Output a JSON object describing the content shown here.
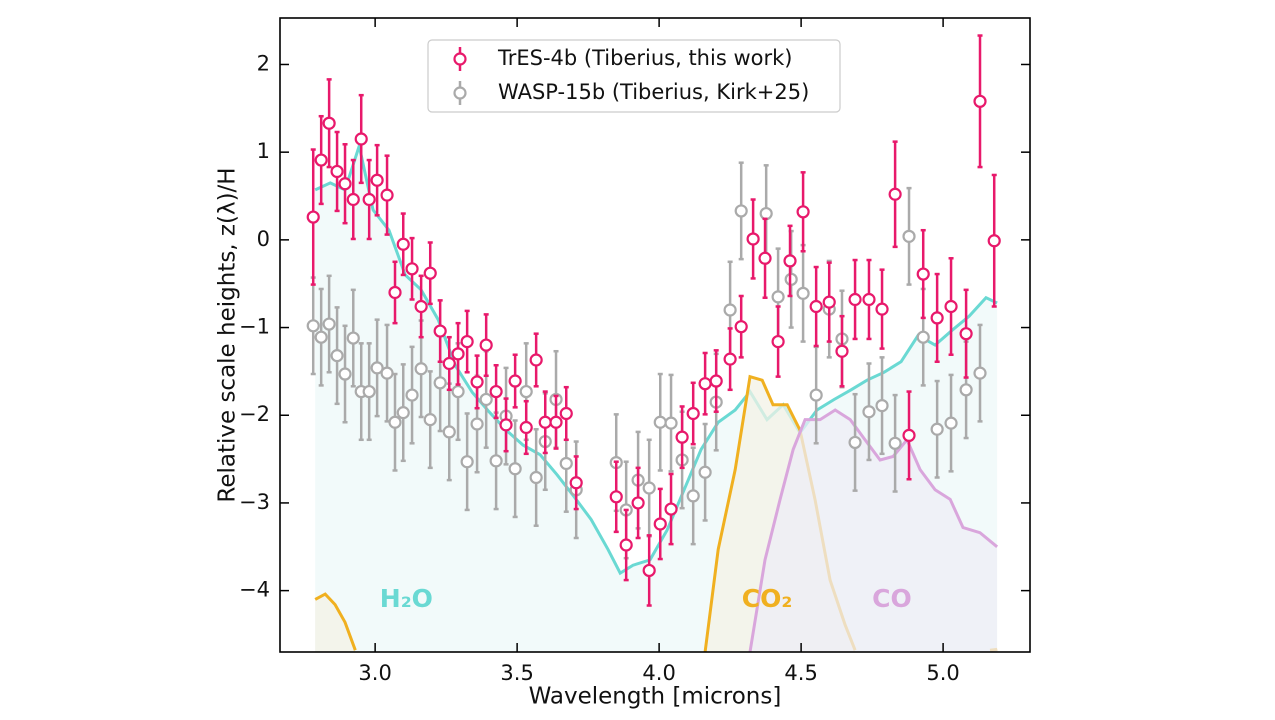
{
  "chart_data": {
    "type": "scatter",
    "xlabel": "Wavelength [microns]",
    "ylabel": "Relative scale heights, z(λ)/H",
    "xlim": [
      2.665,
      5.306
    ],
    "ylim": [
      -4.7,
      2.53
    ],
    "xticks": [
      {
        "value": 3.0,
        "label": "3.0"
      },
      {
        "value": 3.5,
        "label": "3.5"
      },
      {
        "value": 4.0,
        "label": "4.0"
      },
      {
        "value": 4.5,
        "label": "4.5"
      },
      {
        "value": 5.0,
        "label": "5.0"
      }
    ],
    "yticks": [
      {
        "value": -4,
        "label": "−4"
      },
      {
        "value": -3,
        "label": "−3"
      },
      {
        "value": -2,
        "label": "−2"
      },
      {
        "value": -1,
        "label": "−1"
      },
      0,
      1,
      2
    ],
    "legend": "upper center",
    "series": [
      {
        "name": "TrES-4b (Tiberius, this work)",
        "color": "#e8196b",
        "x": [
          2.782,
          2.81,
          2.838,
          2.866,
          2.894,
          2.923,
          2.951,
          2.979,
          3.007,
          3.042,
          3.07,
          3.099,
          3.13,
          3.162,
          3.194,
          3.229,
          3.261,
          3.292,
          3.324,
          3.359,
          3.391,
          3.426,
          3.461,
          3.493,
          3.532,
          3.567,
          3.599,
          3.637,
          3.673,
          3.708,
          3.849,
          3.884,
          3.926,
          3.965,
          4.004,
          4.042,
          4.081,
          4.12,
          4.162,
          4.201,
          4.25,
          4.289,
          4.331,
          4.373,
          4.419,
          4.461,
          4.507,
          4.553,
          4.599,
          4.644,
          4.69,
          4.739,
          4.785,
          4.831,
          4.88,
          4.93,
          4.979,
          5.028,
          5.081,
          5.13,
          5.18
        ],
        "values": [
          0.26,
          0.91,
          1.33,
          0.78,
          0.64,
          0.46,
          1.15,
          0.46,
          0.68,
          0.51,
          -0.6,
          -0.05,
          -0.33,
          -0.76,
          -0.38,
          -1.04,
          -1.41,
          -1.3,
          -1.16,
          -1.62,
          -1.2,
          -1.73,
          -2.11,
          -1.61,
          -2.14,
          -1.37,
          -2.08,
          -2.08,
          -1.98,
          -2.77,
          -2.93,
          -3.48,
          -3.0,
          -3.77,
          -3.24,
          -3.07,
          -2.25,
          -1.98,
          -1.64,
          -1.61,
          -1.36,
          -0.99,
          0.01,
          -0.21,
          -1.16,
          -0.24,
          0.32,
          -0.76,
          -0.71,
          -1.27,
          -0.68,
          -0.68,
          -0.79,
          0.52,
          -2.23,
          -0.39,
          -0.89,
          -0.76,
          -1.07,
          1.58,
          -0.01
        ],
        "errors": [
          0.77,
          0.5,
          0.5,
          0.45,
          0.45,
          0.45,
          0.5,
          0.45,
          0.4,
          0.45,
          0.35,
          0.35,
          0.35,
          0.35,
          0.35,
          0.35,
          0.3,
          0.35,
          0.35,
          0.3,
          0.35,
          0.3,
          0.3,
          0.3,
          0.3,
          0.3,
          0.35,
          0.3,
          0.3,
          0.3,
          0.4,
          0.4,
          0.4,
          0.4,
          0.4,
          0.4,
          0.35,
          0.35,
          0.35,
          0.35,
          0.35,
          0.35,
          0.45,
          0.45,
          0.4,
          0.4,
          0.45,
          0.45,
          0.45,
          0.4,
          0.45,
          0.45,
          0.45,
          0.6,
          0.5,
          0.5,
          0.5,
          0.55,
          0.5,
          0.75,
          0.75
        ]
      },
      {
        "name": "WASP-15b (Tiberius, Kirk+25)",
        "color": "#aaaaaa",
        "x": [
          2.782,
          2.81,
          2.838,
          2.866,
          2.894,
          2.923,
          2.951,
          2.979,
          3.007,
          3.042,
          3.07,
          3.099,
          3.13,
          3.162,
          3.194,
          3.229,
          3.261,
          3.292,
          3.324,
          3.359,
          3.391,
          3.426,
          3.461,
          3.493,
          3.532,
          3.567,
          3.599,
          3.637,
          3.673,
          3.708,
          3.849,
          3.884,
          3.926,
          3.965,
          4.004,
          4.042,
          4.081,
          4.12,
          4.162,
          4.201,
          4.25,
          4.289,
          4.377,
          4.419,
          4.465,
          4.507,
          4.553,
          4.599,
          4.644,
          4.69,
          4.739,
          4.785,
          4.831,
          4.88,
          4.93,
          4.979,
          5.028,
          5.081,
          5.13
        ],
        "values": [
          -0.98,
          -1.11,
          -0.96,
          -1.32,
          -1.53,
          -1.12,
          -1.73,
          -1.73,
          -1.46,
          -1.52,
          -2.08,
          -1.97,
          -1.77,
          -1.47,
          -2.05,
          -1.63,
          -2.19,
          -1.73,
          -2.53,
          -2.1,
          -1.82,
          -2.52,
          -2.01,
          -2.61,
          -1.73,
          -2.71,
          -2.3,
          -1.82,
          -2.55,
          -2.85,
          -2.54,
          -3.08,
          -2.74,
          -2.83,
          -2.08,
          -2.09,
          -2.51,
          -2.92,
          -2.65,
          -1.85,
          -0.8,
          0.33,
          0.3,
          -0.65,
          -0.45,
          -0.61,
          -1.77,
          -0.79,
          -1.13,
          -2.31,
          -1.96,
          -1.89,
          -2.32,
          0.04,
          -1.11,
          -2.16,
          -2.09,
          -1.71,
          -1.52
        ],
        "errors": [
          0.55,
          0.55,
          0.55,
          0.55,
          0.55,
          0.55,
          0.55,
          0.55,
          0.55,
          0.55,
          0.55,
          0.55,
          0.55,
          0.55,
          0.55,
          0.55,
          0.55,
          0.55,
          0.55,
          0.55,
          0.55,
          0.55,
          0.55,
          0.55,
          0.55,
          0.55,
          0.55,
          0.55,
          0.55,
          0.55,
          0.55,
          0.55,
          0.55,
          0.55,
          0.55,
          0.55,
          0.55,
          0.55,
          0.55,
          0.55,
          0.55,
          0.55,
          0.55,
          0.55,
          0.55,
          0.55,
          0.55,
          0.55,
          0.55,
          0.55,
          0.55,
          0.55,
          0.55,
          0.55,
          0.55,
          0.55,
          0.55,
          0.55,
          0.55
        ]
      }
    ],
    "models": [
      {
        "label": "H₂O",
        "color": "#6ad9d3",
        "fill": "#eef8f8",
        "label_x": 3.11,
        "x": [
          2.789,
          2.842,
          2.894,
          2.944,
          2.993,
          3.049,
          3.106,
          3.162,
          3.222,
          3.282,
          3.342,
          3.401,
          3.461,
          3.521,
          3.581,
          3.641,
          3.701,
          3.761,
          3.82,
          3.863,
          3.908,
          3.968,
          4.028,
          4.088,
          4.148,
          4.208,
          4.268,
          4.32,
          4.38,
          4.437,
          4.496,
          4.556,
          4.616,
          4.676,
          4.732,
          4.792,
          4.852,
          4.912,
          4.972,
          5.032,
          5.092,
          5.151,
          5.19
        ],
        "values": [
          0.57,
          0.65,
          0.57,
          1.07,
          0.34,
          0.11,
          -0.4,
          -0.57,
          -0.91,
          -1.43,
          -1.74,
          -1.96,
          -2.17,
          -2.34,
          -2.45,
          -2.68,
          -2.93,
          -3.19,
          -3.53,
          -3.8,
          -3.71,
          -3.65,
          -3.31,
          -2.85,
          -2.39,
          -2.08,
          -1.94,
          -1.73,
          -2.05,
          -1.88,
          -2.2,
          -1.94,
          -1.82,
          -1.71,
          -1.6,
          -1.51,
          -1.39,
          -1.09,
          -1.2,
          -1.03,
          -0.87,
          -0.66,
          -0.72
        ]
      },
      {
        "label": "CO₂",
        "color": "#f0b020",
        "fill": "#f3f1e6",
        "label_x": 4.38,
        "x": [
          2.789,
          2.824,
          2.859,
          2.894,
          2.93,
          null,
          4.162,
          4.208,
          4.268,
          4.32,
          4.363,
          4.401,
          4.451,
          4.496,
          4.549,
          4.602,
          4.655,
          4.69,
          null,
          5.165,
          5.19
        ],
        "values": [
          -4.1,
          -4.04,
          -4.16,
          -4.36,
          -4.68,
          null,
          -4.7,
          -3.53,
          -2.62,
          -1.56,
          -1.6,
          -1.88,
          -1.88,
          -2.17,
          -2.96,
          -3.88,
          -4.39,
          -4.68,
          null,
          -4.68,
          -4.67
        ]
      },
      {
        "label": "CO",
        "color": "#d9a6dc",
        "fill": "#eeeef6",
        "label_x": 4.82,
        "x": [
          4.32,
          4.373,
          4.426,
          4.472,
          4.514,
          4.567,
          4.62,
          4.673,
          4.725,
          4.778,
          4.824,
          4.873,
          4.919,
          4.972,
          5.025,
          5.07,
          5.13,
          5.19
        ],
        "values": [
          -4.7,
          -3.65,
          -2.96,
          -2.39,
          -2.05,
          -2.05,
          -1.94,
          -2.05,
          -2.28,
          -2.51,
          -2.47,
          -2.28,
          -2.62,
          -2.85,
          -2.96,
          -3.28,
          -3.34,
          -3.5
        ]
      }
    ]
  }
}
